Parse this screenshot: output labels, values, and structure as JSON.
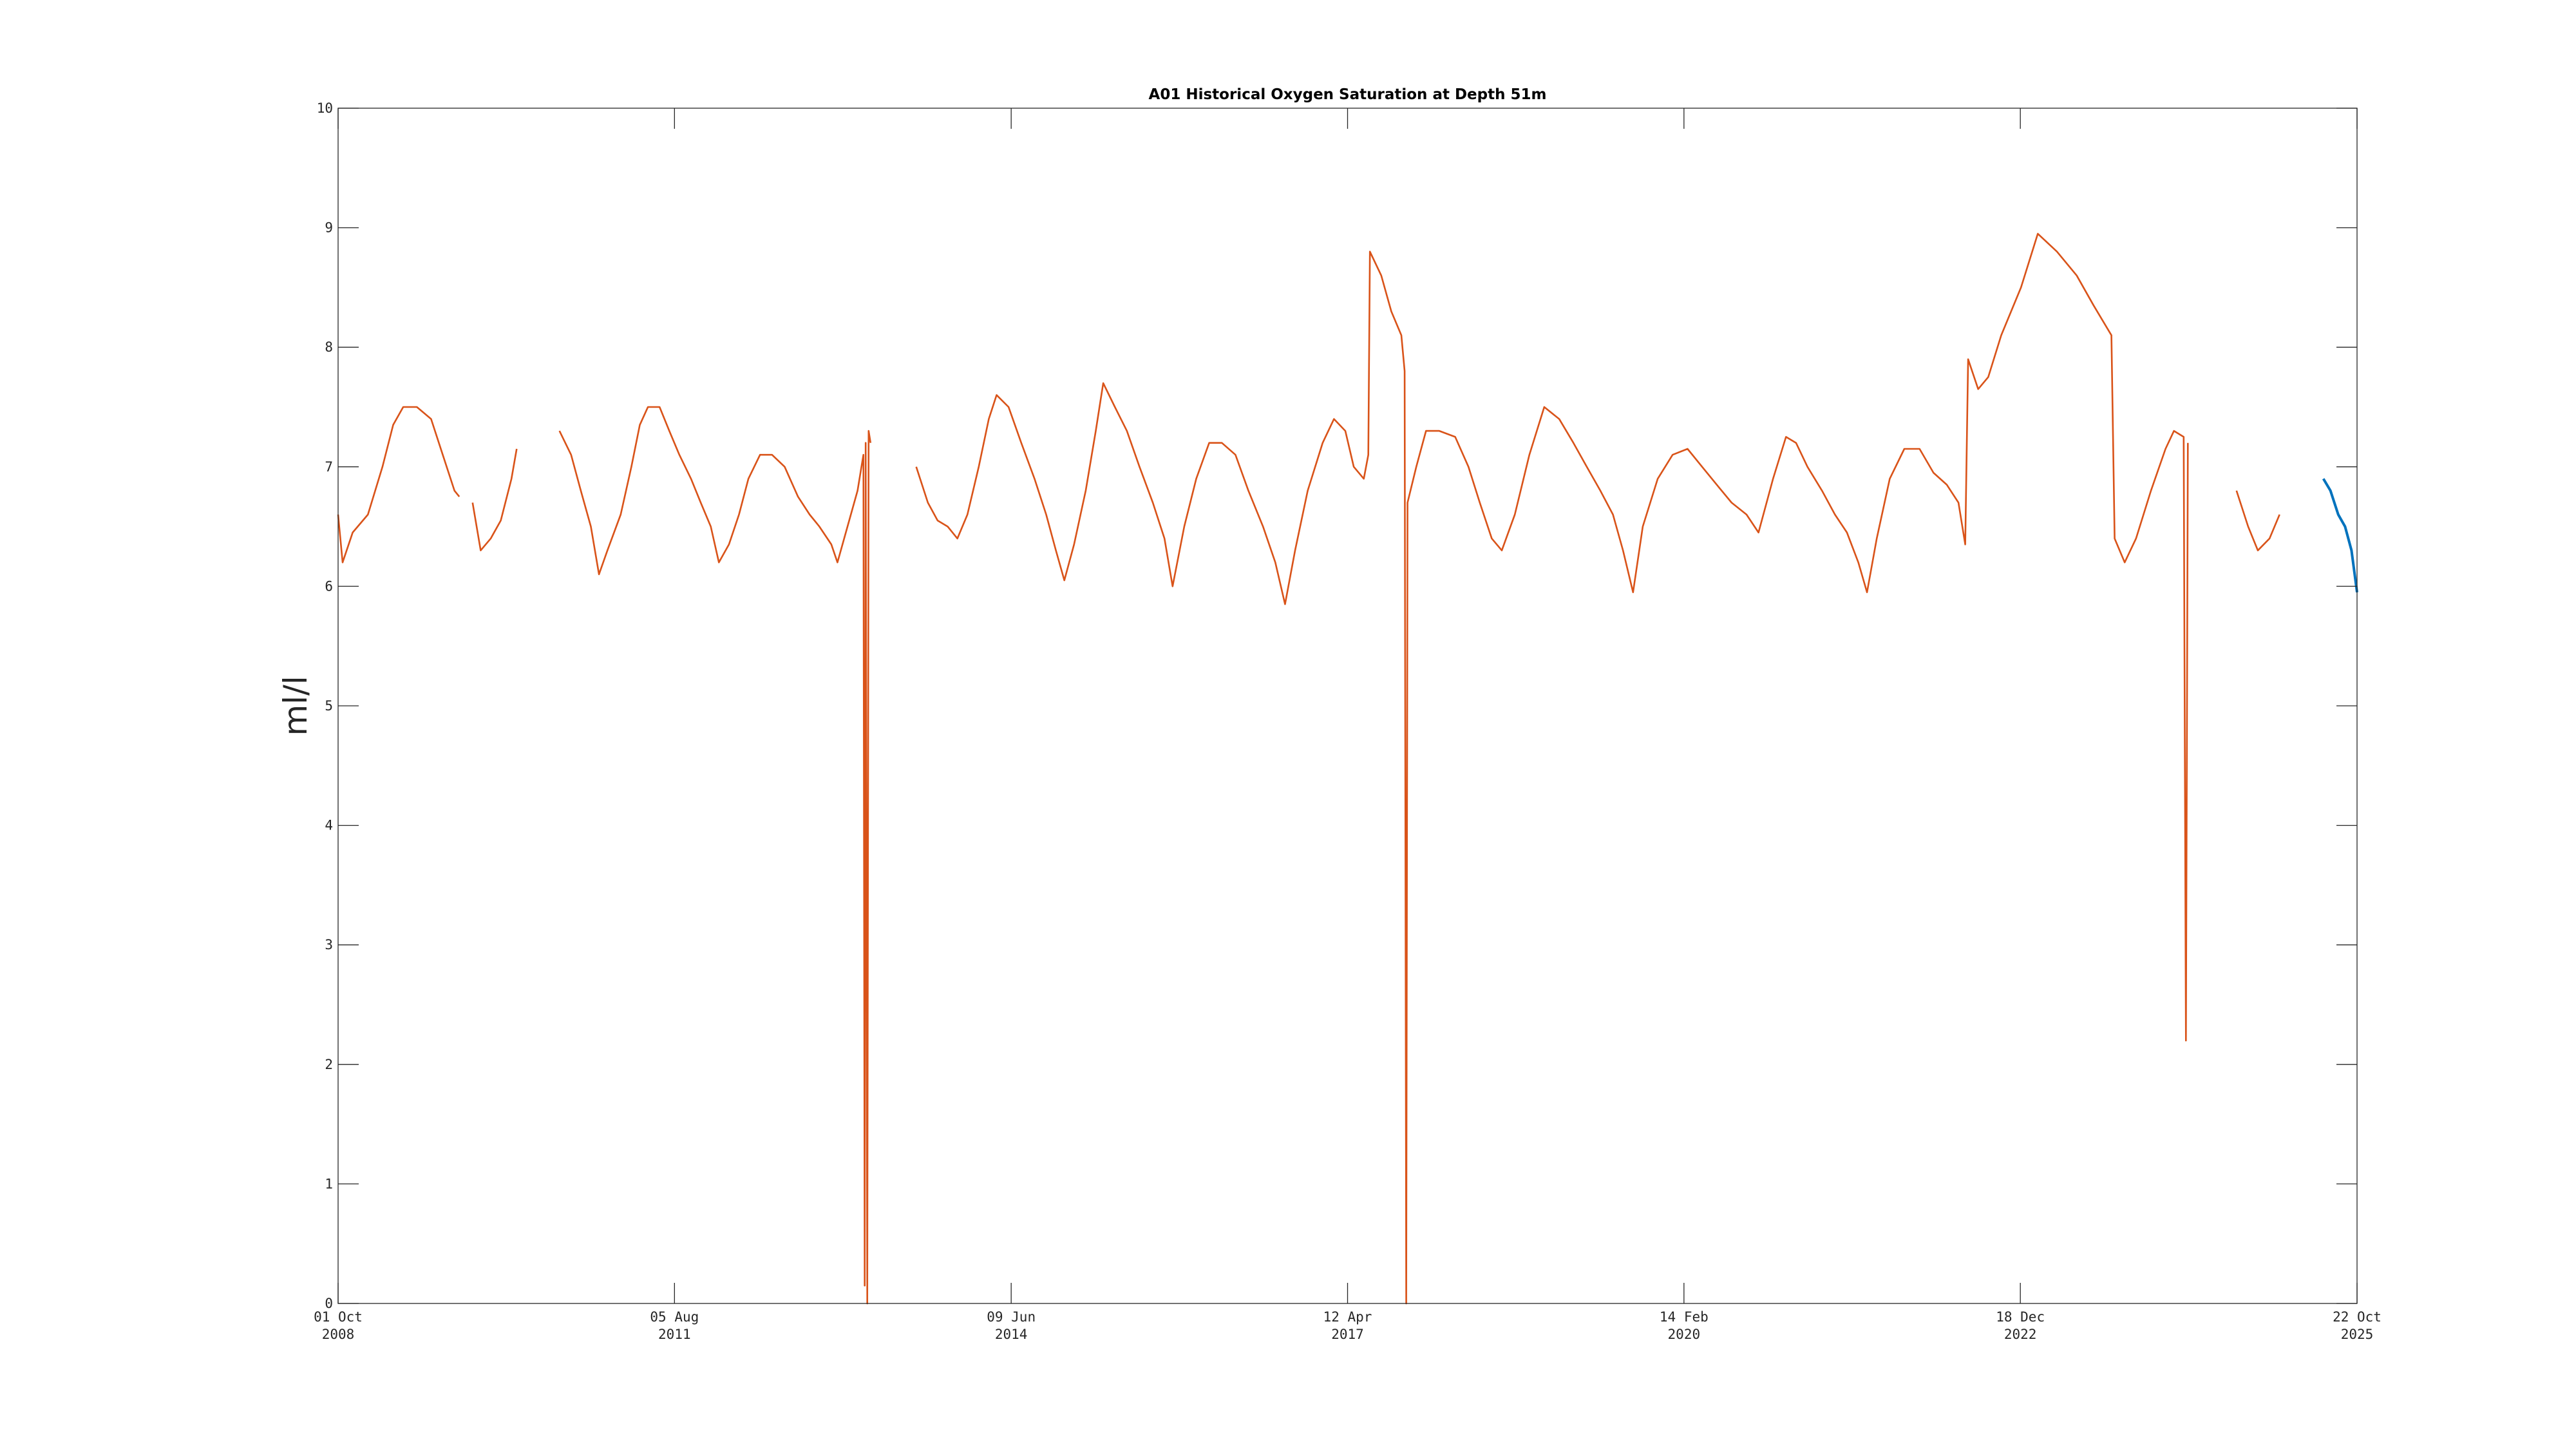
{
  "chart_data": {
    "type": "line",
    "title": "A01 Historical Oxygen Saturation at Depth 51m",
    "ylabel": "ml/l",
    "xlabel": "",
    "ylim": [
      0,
      10
    ],
    "xlim": [
      "2008-10-01",
      "2025-10-22"
    ],
    "grid": false,
    "y_ticks": [
      "0",
      "1",
      "2",
      "3",
      "4",
      "5",
      "6",
      "7",
      "8",
      "9",
      "10"
    ],
    "x_ticks": [
      {
        "date": "2008-10-01",
        "line1": "01 Oct",
        "line2": "2008"
      },
      {
        "date": "2011-08-05",
        "line1": "05 Aug",
        "line2": "2011"
      },
      {
        "date": "2014-06-09",
        "line1": "09 Jun",
        "line2": "2014"
      },
      {
        "date": "2017-04-12",
        "line1": "12 Apr",
        "line2": "2017"
      },
      {
        "date": "2020-02-14",
        "line1": "14 Feb",
        "line2": "2020"
      },
      {
        "date": "2022-12-18",
        "line1": "18 Dec",
        "line2": "2022"
      },
      {
        "date": "2025-10-22",
        "line1": "22 Oct",
        "line2": "2025"
      }
    ],
    "series": [
      {
        "color": "#d95319",
        "segments": [
          [
            [
              "2008-10-01",
              6.6
            ],
            [
              "2008-10-15",
              6.2
            ],
            [
              "2008-11-15",
              6.45
            ],
            [
              "2009-01-01",
              6.6
            ],
            [
              "2009-02-15",
              7.0
            ],
            [
              "2009-03-20",
              7.35
            ],
            [
              "2009-04-20",
              7.5
            ],
            [
              "2009-06-01",
              7.5
            ],
            [
              "2009-07-15",
              7.4
            ],
            [
              "2009-08-20",
              7.1
            ],
            [
              "2009-09-25",
              6.8
            ],
            [
              "2009-10-10",
              6.75
            ]
          ],
          [
            [
              "2009-11-20",
              6.7
            ],
            [
              "2009-12-15",
              6.3
            ],
            [
              "2010-01-15",
              6.4
            ],
            [
              "2010-02-15",
              6.55
            ],
            [
              "2010-03-20",
              6.9
            ],
            [
              "2010-04-05",
              7.15
            ]
          ],
          [
            [
              "2010-08-15",
              7.3
            ],
            [
              "2010-09-20",
              7.1
            ],
            [
              "2010-10-20",
              6.8
            ],
            [
              "2010-11-20",
              6.5
            ],
            [
              "2010-12-15",
              6.1
            ],
            [
              "2011-01-10",
              6.3
            ],
            [
              "2011-02-20",
              6.6
            ],
            [
              "2011-03-25",
              7.0
            ],
            [
              "2011-04-20",
              7.35
            ],
            [
              "2011-05-15",
              7.5
            ],
            [
              "2011-06-20",
              7.5
            ],
            [
              "2011-07-20",
              7.3
            ],
            [
              "2011-08-20",
              7.1
            ],
            [
              "2011-09-25",
              6.9
            ],
            [
              "2011-10-25",
              6.7
            ],
            [
              "2011-11-25",
              6.5
            ],
            [
              "2011-12-20",
              6.2
            ],
            [
              "2012-01-20",
              6.35
            ],
            [
              "2012-02-20",
              6.6
            ],
            [
              "2012-03-20",
              6.9
            ],
            [
              "2012-04-25",
              7.1
            ],
            [
              "2012-06-01",
              7.1
            ],
            [
              "2012-07-10",
              7.0
            ],
            [
              "2012-08-20",
              6.75
            ],
            [
              "2012-09-25",
              6.6
            ],
            [
              "2012-10-25",
              6.5
            ],
            [
              "2012-12-01",
              6.35
            ],
            [
              "2012-12-20",
              6.2
            ],
            [
              "2013-01-20",
              6.5
            ],
            [
              "2013-02-20",
              6.8
            ],
            [
              "2013-03-10",
              7.1
            ],
            [
              "2013-03-14",
              0.15
            ],
            [
              "2013-03-17",
              7.2
            ],
            [
              "2013-03-22",
              0.0
            ],
            [
              "2013-03-26",
              7.3
            ],
            [
              "2013-04-01",
              7.2
            ]
          ],
          [
            [
              "2013-08-20",
              7.0
            ],
            [
              "2013-09-25",
              6.7
            ],
            [
              "2013-10-25",
              6.55
            ],
            [
              "2013-11-25",
              6.5
            ],
            [
              "2013-12-25",
              6.4
            ],
            [
              "2014-01-25",
              6.6
            ],
            [
              "2014-03-01",
              7.0
            ],
            [
              "2014-04-01",
              7.4
            ],
            [
              "2014-04-25",
              7.6
            ],
            [
              "2014-06-01",
              7.5
            ],
            [
              "2014-07-10",
              7.2
            ],
            [
              "2014-08-20",
              6.9
            ],
            [
              "2014-09-25",
              6.6
            ],
            [
              "2014-10-25",
              6.3
            ],
            [
              "2014-11-20",
              6.05
            ],
            [
              "2014-12-20",
              6.35
            ],
            [
              "2015-01-25",
              6.8
            ],
            [
              "2015-02-25",
              7.3
            ],
            [
              "2015-03-20",
              7.7
            ],
            [
              "2015-04-25",
              7.5
            ],
            [
              "2015-06-01",
              7.3
            ],
            [
              "2015-07-10",
              7.0
            ],
            [
              "2015-08-20",
              6.7
            ],
            [
              "2015-09-25",
              6.4
            ],
            [
              "2015-10-20",
              6.0
            ],
            [
              "2015-11-25",
              6.5
            ],
            [
              "2016-01-01",
              6.9
            ],
            [
              "2016-02-10",
              7.2
            ],
            [
              "2016-03-20",
              7.2
            ],
            [
              "2016-05-01",
              7.1
            ],
            [
              "2016-06-10",
              6.8
            ],
            [
              "2016-07-25",
              6.5
            ],
            [
              "2016-09-01",
              6.2
            ],
            [
              "2016-10-01",
              5.85
            ],
            [
              "2016-11-01",
              6.3
            ],
            [
              "2016-12-10",
              6.8
            ],
            [
              "2017-01-25",
              7.2
            ],
            [
              "2017-03-01",
              7.4
            ],
            [
              "2017-04-05",
              7.3
            ],
            [
              "2017-05-01",
              7.0
            ],
            [
              "2017-06-01",
              6.9
            ],
            [
              "2017-06-15",
              7.1
            ],
            [
              "2017-06-20",
              8.8
            ],
            [
              "2017-07-25",
              8.6
            ],
            [
              "2017-08-25",
              8.3
            ],
            [
              "2017-09-25",
              8.1
            ],
            [
              "2017-10-05",
              7.8
            ],
            [
              "2017-10-10",
              0.0
            ],
            [
              "2017-10-14",
              6.7
            ],
            [
              "2017-11-10",
              7.0
            ],
            [
              "2017-12-10",
              7.3
            ],
            [
              "2018-01-20",
              7.3
            ],
            [
              "2018-03-10",
              7.25
            ],
            [
              "2018-04-20",
              7.0
            ],
            [
              "2018-05-25",
              6.7
            ],
            [
              "2018-07-01",
              6.4
            ],
            [
              "2018-08-01",
              6.3
            ],
            [
              "2018-09-10",
              6.6
            ],
            [
              "2018-10-25",
              7.1
            ],
            [
              "2018-12-10",
              7.5
            ],
            [
              "2019-01-25",
              7.4
            ],
            [
              "2019-03-10",
              7.2
            ],
            [
              "2019-04-20",
              7.0
            ],
            [
              "2019-06-01",
              6.8
            ],
            [
              "2019-07-10",
              6.6
            ],
            [
              "2019-08-10",
              6.3
            ],
            [
              "2019-09-10",
              5.95
            ],
            [
              "2019-10-10",
              6.5
            ],
            [
              "2019-11-25",
              6.9
            ],
            [
              "2020-01-10",
              7.1
            ],
            [
              "2020-02-25",
              7.15
            ],
            [
              "2020-04-10",
              7.0
            ],
            [
              "2020-05-25",
              6.85
            ],
            [
              "2020-07-10",
              6.7
            ],
            [
              "2020-08-25",
              6.6
            ],
            [
              "2020-10-01",
              6.45
            ],
            [
              "2020-11-15",
              6.9
            ],
            [
              "2020-12-25",
              7.25
            ],
            [
              "2021-01-25",
              7.2
            ],
            [
              "2021-03-01",
              7.0
            ],
            [
              "2021-04-15",
              6.8
            ],
            [
              "2021-05-25",
              6.6
            ],
            [
              "2021-07-01",
              6.45
            ],
            [
              "2021-08-05",
              6.2
            ],
            [
              "2021-09-01",
              5.95
            ],
            [
              "2021-10-01",
              6.4
            ],
            [
              "2021-11-10",
              6.9
            ],
            [
              "2021-12-25",
              7.15
            ],
            [
              "2022-02-10",
              7.15
            ],
            [
              "2022-03-25",
              6.95
            ],
            [
              "2022-05-05",
              6.85
            ],
            [
              "2022-06-10",
              6.7
            ],
            [
              "2022-07-01",
              6.35
            ],
            [
              "2022-07-10",
              7.9
            ],
            [
              "2022-08-10",
              7.65
            ],
            [
              "2022-09-10",
              7.75
            ],
            [
              "2022-10-20",
              8.1
            ],
            [
              "2022-12-20",
              8.5
            ],
            [
              "2023-02-10",
              8.95
            ],
            [
              "2023-04-10",
              8.8
            ],
            [
              "2023-06-10",
              8.6
            ],
            [
              "2023-08-01",
              8.35
            ],
            [
              "2023-09-25",
              8.1
            ],
            [
              "2023-10-05",
              6.4
            ],
            [
              "2023-11-05",
              6.2
            ],
            [
              "2023-12-10",
              6.4
            ],
            [
              "2024-01-25",
              6.8
            ],
            [
              "2024-03-10",
              7.15
            ],
            [
              "2024-04-05",
              7.3
            ],
            [
              "2024-05-05",
              7.25
            ],
            [
              "2024-05-12",
              2.2
            ],
            [
              "2024-05-18",
              7.2
            ]
          ],
          [
            [
              "2024-10-15",
              6.8
            ],
            [
              "2024-11-20",
              6.5
            ],
            [
              "2024-12-20",
              6.3
            ],
            [
              "2025-01-25",
              6.4
            ],
            [
              "2025-02-25",
              6.6
            ]
          ]
        ]
      },
      {
        "color": "#0072bd",
        "segments": [
          [
            [
              "2025-07-10",
              6.9
            ],
            [
              "2025-08-01",
              6.8
            ],
            [
              "2025-08-25",
              6.6
            ],
            [
              "2025-09-15",
              6.5
            ],
            [
              "2025-10-05",
              6.3
            ],
            [
              "2025-10-22",
              5.95
            ]
          ]
        ]
      }
    ]
  }
}
